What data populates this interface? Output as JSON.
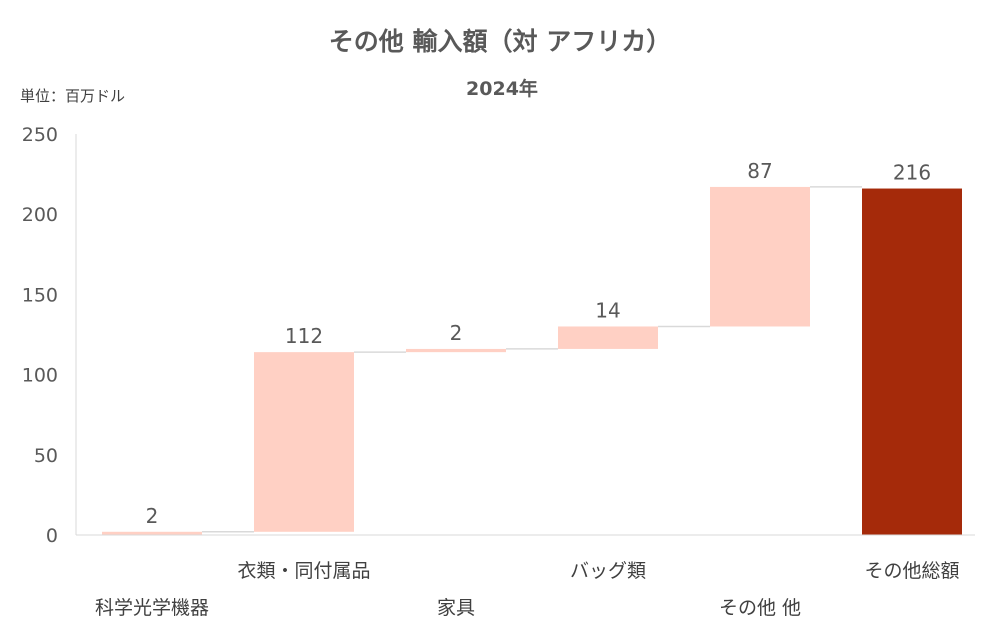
{
  "chart_data": {
    "type": "bar",
    "subtype": "waterfall",
    "title": "その他 輸入額（対 アフリカ）",
    "subtitle": "2024年",
    "unit_label": "単位：百万ドル",
    "ylim": [
      0,
      250
    ],
    "yticks": [
      0,
      50,
      100,
      150,
      200,
      250
    ],
    "categories": [
      "科学光学機器",
      "衣類・同付属品",
      "家具",
      "バッグ類",
      "その他 他",
      "その他総額"
    ],
    "values": [
      2,
      112,
      2,
      14,
      87,
      216
    ],
    "data_labels": [
      "2",
      "112",
      "2",
      "14",
      "87",
      "216"
    ],
    "is_total": [
      false,
      false,
      false,
      false,
      false,
      true
    ],
    "colors": {
      "increment": "#FFD0C4",
      "total": "#A52A0A",
      "connector": "#D9D9D9",
      "axis": "#D9D9D9"
    },
    "grid": false,
    "legend": "none"
  }
}
